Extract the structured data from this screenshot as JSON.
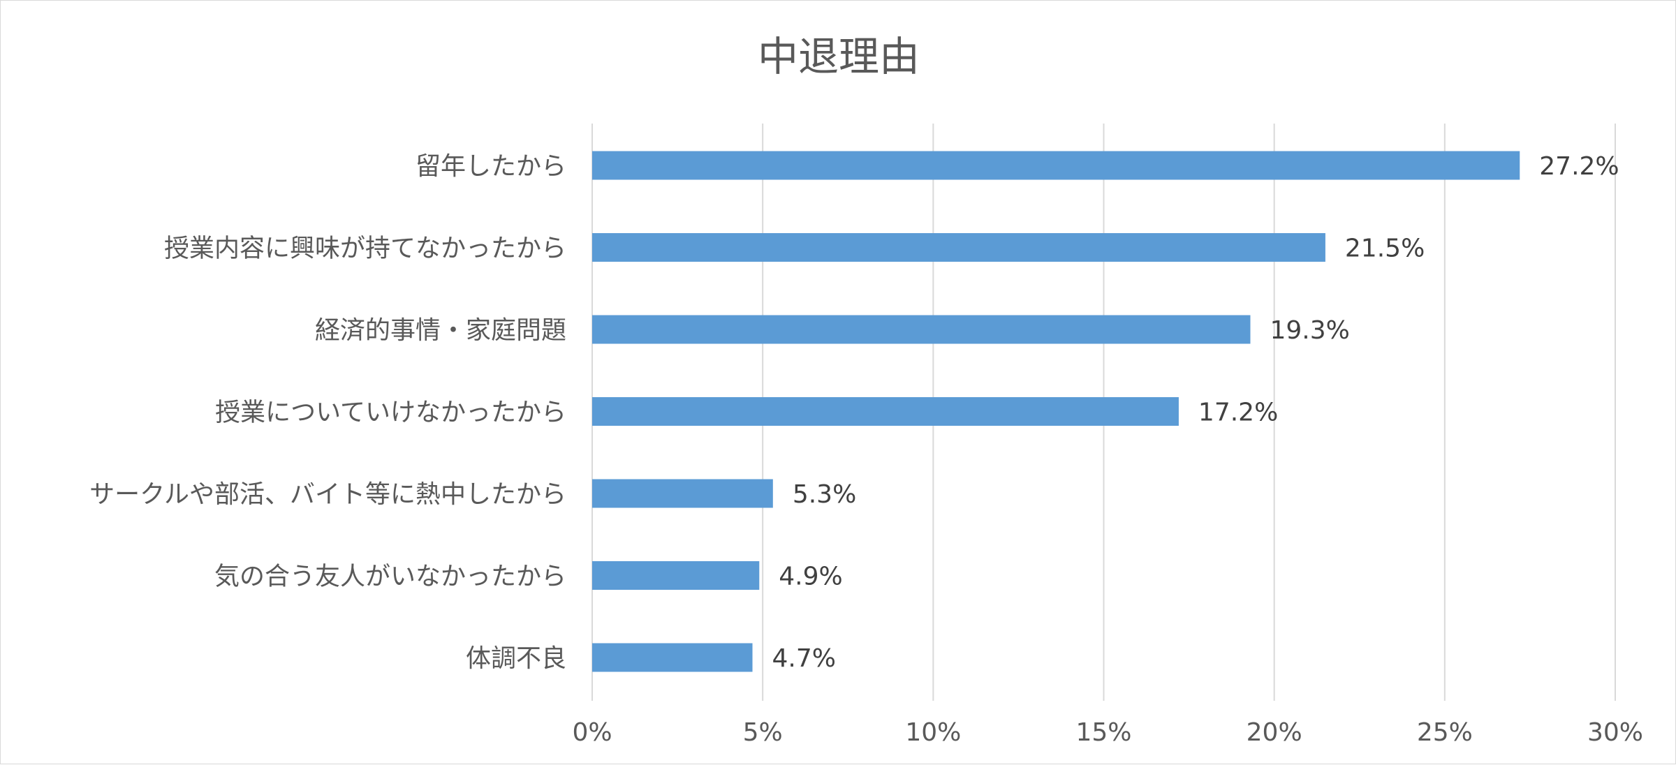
{
  "chart_data": {
    "type": "bar",
    "orientation": "horizontal",
    "title": "中退理由",
    "xlabel": "",
    "ylabel": "",
    "xlim": [
      0,
      30
    ],
    "x_ticks": [
      0,
      5,
      10,
      15,
      20,
      25,
      30
    ],
    "x_tick_labels": [
      "0%",
      "5%",
      "10%",
      "15%",
      "20%",
      "25%",
      "30%"
    ],
    "grid": "vertical",
    "legend": "none",
    "bar_color": "#5b9bd5",
    "categories": [
      "留年したから",
      "授業内容に興味が持てなかったから",
      "経済的事情・家庭問題",
      "授業についていけなかったから",
      "サークルや部活、バイト等に熱中したから",
      "気の合う友人がいなかったから",
      "体調不良"
    ],
    "values": [
      27.2,
      21.5,
      19.3,
      17.2,
      5.3,
      4.9,
      4.7
    ],
    "data_labels": [
      "27.2%",
      "21.5%",
      "19.3%",
      "17.2%",
      "5.3%",
      "4.9%",
      "4.7%"
    ]
  }
}
